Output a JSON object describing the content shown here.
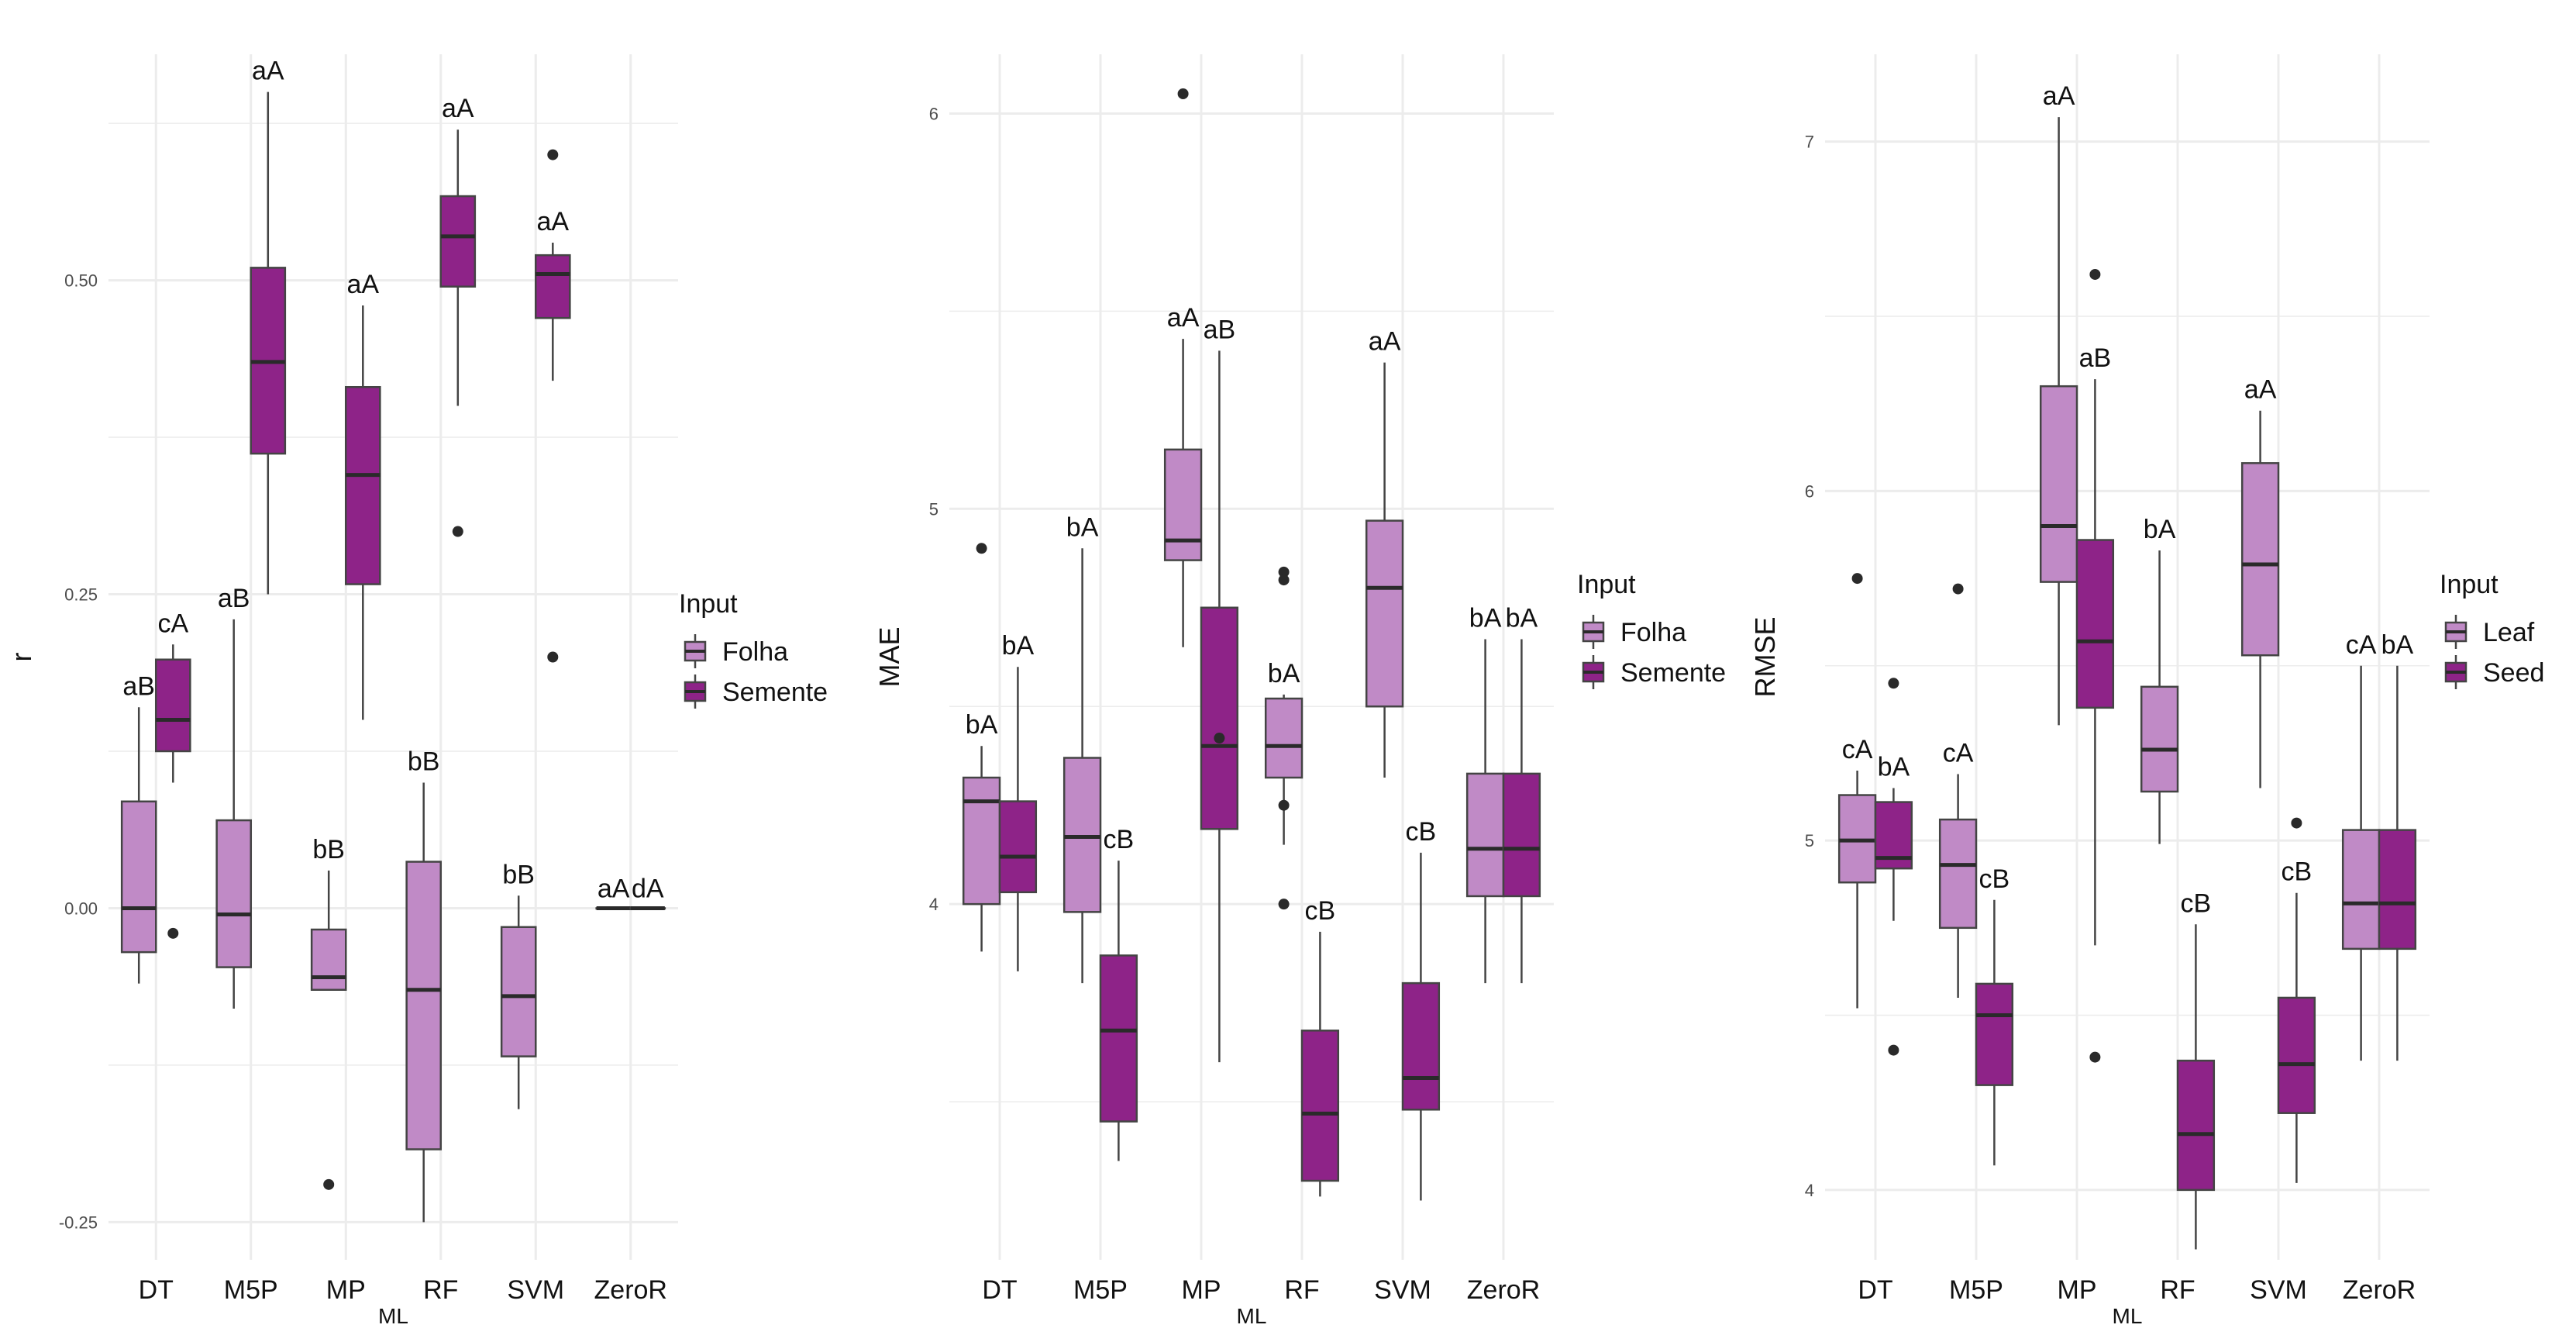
{
  "colors": {
    "folha": "#c08ac6",
    "semente": "#8e2388",
    "grid": "#ececec",
    "whisker": "#444444",
    "text": "#111111",
    "tick_text": "#4d4d4d"
  },
  "legend_fill_keys": [
    "folha",
    "semente"
  ],
  "chart_data": [
    {
      "type": "box",
      "xlabel": "ML",
      "ylabel": "r",
      "ylim": [
        -0.28,
        0.68
      ],
      "yticks": [
        -0.25,
        0.0,
        0.25,
        0.5
      ],
      "ytick_labels": [
        "-0.25",
        "0.00",
        "0.25",
        "0.50"
      ],
      "categories": [
        "DT",
        "M5P",
        "MP",
        "RF",
        "SVM",
        "ZeroR"
      ],
      "legend_title": "Input",
      "series": [
        {
          "name": "Folha",
          "boxes": [
            {
              "low": -0.06,
              "q1": -0.035,
              "median": 0.0,
              "q3": 0.085,
              "high": 0.16,
              "outliers": [],
              "label": "aB"
            },
            {
              "low": -0.08,
              "q1": -0.047,
              "median": -0.005,
              "q3": 0.07,
              "high": 0.23,
              "outliers": [],
              "label": "aB"
            },
            {
              "low": -0.065,
              "q1": -0.065,
              "median": -0.055,
              "q3": -0.017,
              "high": 0.03,
              "outliers": [
                -0.22
              ],
              "label": "bB"
            },
            {
              "low": -0.25,
              "q1": -0.192,
              "median": -0.065,
              "q3": 0.037,
              "high": 0.1,
              "outliers": [],
              "label": "bB"
            },
            {
              "low": -0.16,
              "q1": -0.118,
              "median": -0.07,
              "q3": -0.015,
              "high": 0.01,
              "outliers": [],
              "label": "bB"
            },
            {
              "low": 0.0,
              "q1": 0.0,
              "median": 0.0,
              "q3": 0.0,
              "high": 0.0,
              "outliers": [],
              "label": "aA"
            }
          ]
        },
        {
          "name": "Semente",
          "boxes": [
            {
              "low": 0.1,
              "q1": 0.125,
              "median": 0.15,
              "q3": 0.198,
              "high": 0.21,
              "outliers": [
                -0.02
              ],
              "label": "cA"
            },
            {
              "low": 0.25,
              "q1": 0.362,
              "median": 0.435,
              "q3": 0.51,
              "high": 0.65,
              "outliers": [],
              "label": "aA"
            },
            {
              "low": 0.15,
              "q1": 0.258,
              "median": 0.345,
              "q3": 0.415,
              "high": 0.48,
              "outliers": [],
              "label": "aA"
            },
            {
              "low": 0.4,
              "q1": 0.495,
              "median": 0.535,
              "q3": 0.567,
              "high": 0.62,
              "outliers": [
                0.3
              ],
              "label": "aA"
            },
            {
              "low": 0.42,
              "q1": 0.47,
              "median": 0.505,
              "q3": 0.52,
              "high": 0.53,
              "outliers": [
                0.6,
                0.2
              ],
              "label": "aA"
            },
            {
              "low": 0.0,
              "q1": 0.0,
              "median": 0.0,
              "q3": 0.0,
              "high": 0.0,
              "outliers": [],
              "label": "dA"
            }
          ]
        }
      ]
    },
    {
      "type": "box",
      "xlabel": "ML",
      "ylabel": "MAE",
      "ylim": [
        3.1,
        6.15
      ],
      "yticks": [
        4,
        5,
        6
      ],
      "ytick_labels": [
        "4",
        "5",
        "6"
      ],
      "categories": [
        "DT",
        "M5P",
        "MP",
        "RF",
        "SVM",
        "ZeroR"
      ],
      "legend_title": "Input",
      "series": [
        {
          "name": "Folha",
          "boxes": [
            {
              "low": 3.88,
              "q1": 4.0,
              "median": 4.26,
              "q3": 4.32,
              "high": 4.4,
              "outliers": [
                4.9
              ],
              "label": "bA"
            },
            {
              "low": 3.8,
              "q1": 3.98,
              "median": 4.17,
              "q3": 4.37,
              "high": 4.9,
              "outliers": [],
              "label": "bA"
            },
            {
              "low": 4.65,
              "q1": 4.87,
              "median": 4.92,
              "q3": 5.15,
              "high": 5.43,
              "outliers": [
                6.05
              ],
              "label": "aA"
            },
            {
              "low": 4.15,
              "q1": 4.32,
              "median": 4.4,
              "q3": 4.52,
              "high": 4.53,
              "outliers": [
                4.84,
                4.82,
                4.25,
                4.0
              ],
              "label": "bA"
            },
            {
              "low": 4.32,
              "q1": 4.5,
              "median": 4.8,
              "q3": 4.97,
              "high": 5.37,
              "outliers": [],
              "label": "aA"
            },
            {
              "low": 3.8,
              "q1": 4.02,
              "median": 4.14,
              "q3": 4.33,
              "high": 4.67,
              "outliers": [],
              "label": "bA"
            }
          ]
        },
        {
          "name": "Semente",
          "boxes": [
            {
              "low": 3.83,
              "q1": 4.03,
              "median": 4.12,
              "q3": 4.26,
              "high": 4.6,
              "outliers": [],
              "label": "bA"
            },
            {
              "low": 3.35,
              "q1": 3.45,
              "median": 3.68,
              "q3": 3.87,
              "high": 4.11,
              "outliers": [],
              "label": "cB"
            },
            {
              "low": 3.6,
              "q1": 4.19,
              "median": 4.4,
              "q3": 4.75,
              "high": 5.4,
              "outliers": [
                4.42
              ],
              "label": "aB"
            },
            {
              "low": 3.26,
              "q1": 3.3,
              "median": 3.47,
              "q3": 3.68,
              "high": 3.93,
              "outliers": [],
              "label": "cB"
            },
            {
              "low": 3.25,
              "q1": 3.48,
              "median": 3.56,
              "q3": 3.8,
              "high": 4.13,
              "outliers": [],
              "label": "cB"
            },
            {
              "low": 3.8,
              "q1": 4.02,
              "median": 4.14,
              "q3": 4.33,
              "high": 4.67,
              "outliers": [],
              "label": "bA"
            }
          ]
        }
      ]
    },
    {
      "type": "box",
      "xlabel": "ML",
      "ylabel": "RMSE",
      "ylim": [
        3.8,
        7.25
      ],
      "yticks": [
        4,
        5,
        6,
        7
      ],
      "ytick_labels": [
        "4",
        "5",
        "6",
        "7"
      ],
      "categories": [
        "DT",
        "M5P",
        "MP",
        "RF",
        "SVM",
        "ZeroR"
      ],
      "legend_title": "Input",
      "series": [
        {
          "name": "Leaf",
          "boxes": [
            {
              "low": 4.52,
              "q1": 4.88,
              "median": 5.0,
              "q3": 5.13,
              "high": 5.2,
              "outliers": [
                5.75
              ],
              "label": "cA"
            },
            {
              "low": 4.55,
              "q1": 4.75,
              "median": 4.93,
              "q3": 5.06,
              "high": 5.19,
              "outliers": [
                5.72
              ],
              "label": "cA"
            },
            {
              "low": 5.33,
              "q1": 5.74,
              "median": 5.9,
              "q3": 6.3,
              "high": 7.07,
              "outliers": [],
              "label": "aA"
            },
            {
              "low": 4.99,
              "q1": 5.14,
              "median": 5.26,
              "q3": 5.44,
              "high": 5.83,
              "outliers": [],
              "label": "bA"
            },
            {
              "low": 5.15,
              "q1": 5.53,
              "median": 5.79,
              "q3": 6.08,
              "high": 6.23,
              "outliers": [],
              "label": "aA"
            },
            {
              "low": 4.37,
              "q1": 4.69,
              "median": 4.82,
              "q3": 5.03,
              "high": 5.5,
              "outliers": [],
              "label": "cA"
            }
          ]
        },
        {
          "name": "Seed",
          "boxes": [
            {
              "low": 4.77,
              "q1": 4.92,
              "median": 4.95,
              "q3": 5.11,
              "high": 5.15,
              "outliers": [
                5.45,
                4.4
              ],
              "label": "bA"
            },
            {
              "low": 4.07,
              "q1": 4.3,
              "median": 4.5,
              "q3": 4.59,
              "high": 4.83,
              "outliers": [],
              "label": "cB"
            },
            {
              "low": 4.7,
              "q1": 5.38,
              "median": 5.57,
              "q3": 5.86,
              "high": 6.32,
              "outliers": [
                6.62,
                4.38
              ],
              "label": "aB"
            },
            {
              "low": 3.83,
              "q1": 4.0,
              "median": 4.16,
              "q3": 4.37,
              "high": 4.76,
              "outliers": [],
              "label": "cB"
            },
            {
              "low": 4.02,
              "q1": 4.22,
              "median": 4.36,
              "q3": 4.55,
              "high": 4.85,
              "outliers": [
                5.05
              ],
              "label": "cB"
            },
            {
              "low": 4.37,
              "q1": 4.69,
              "median": 4.82,
              "q3": 5.03,
              "high": 5.5,
              "outliers": [],
              "label": "bA"
            }
          ]
        }
      ]
    }
  ]
}
